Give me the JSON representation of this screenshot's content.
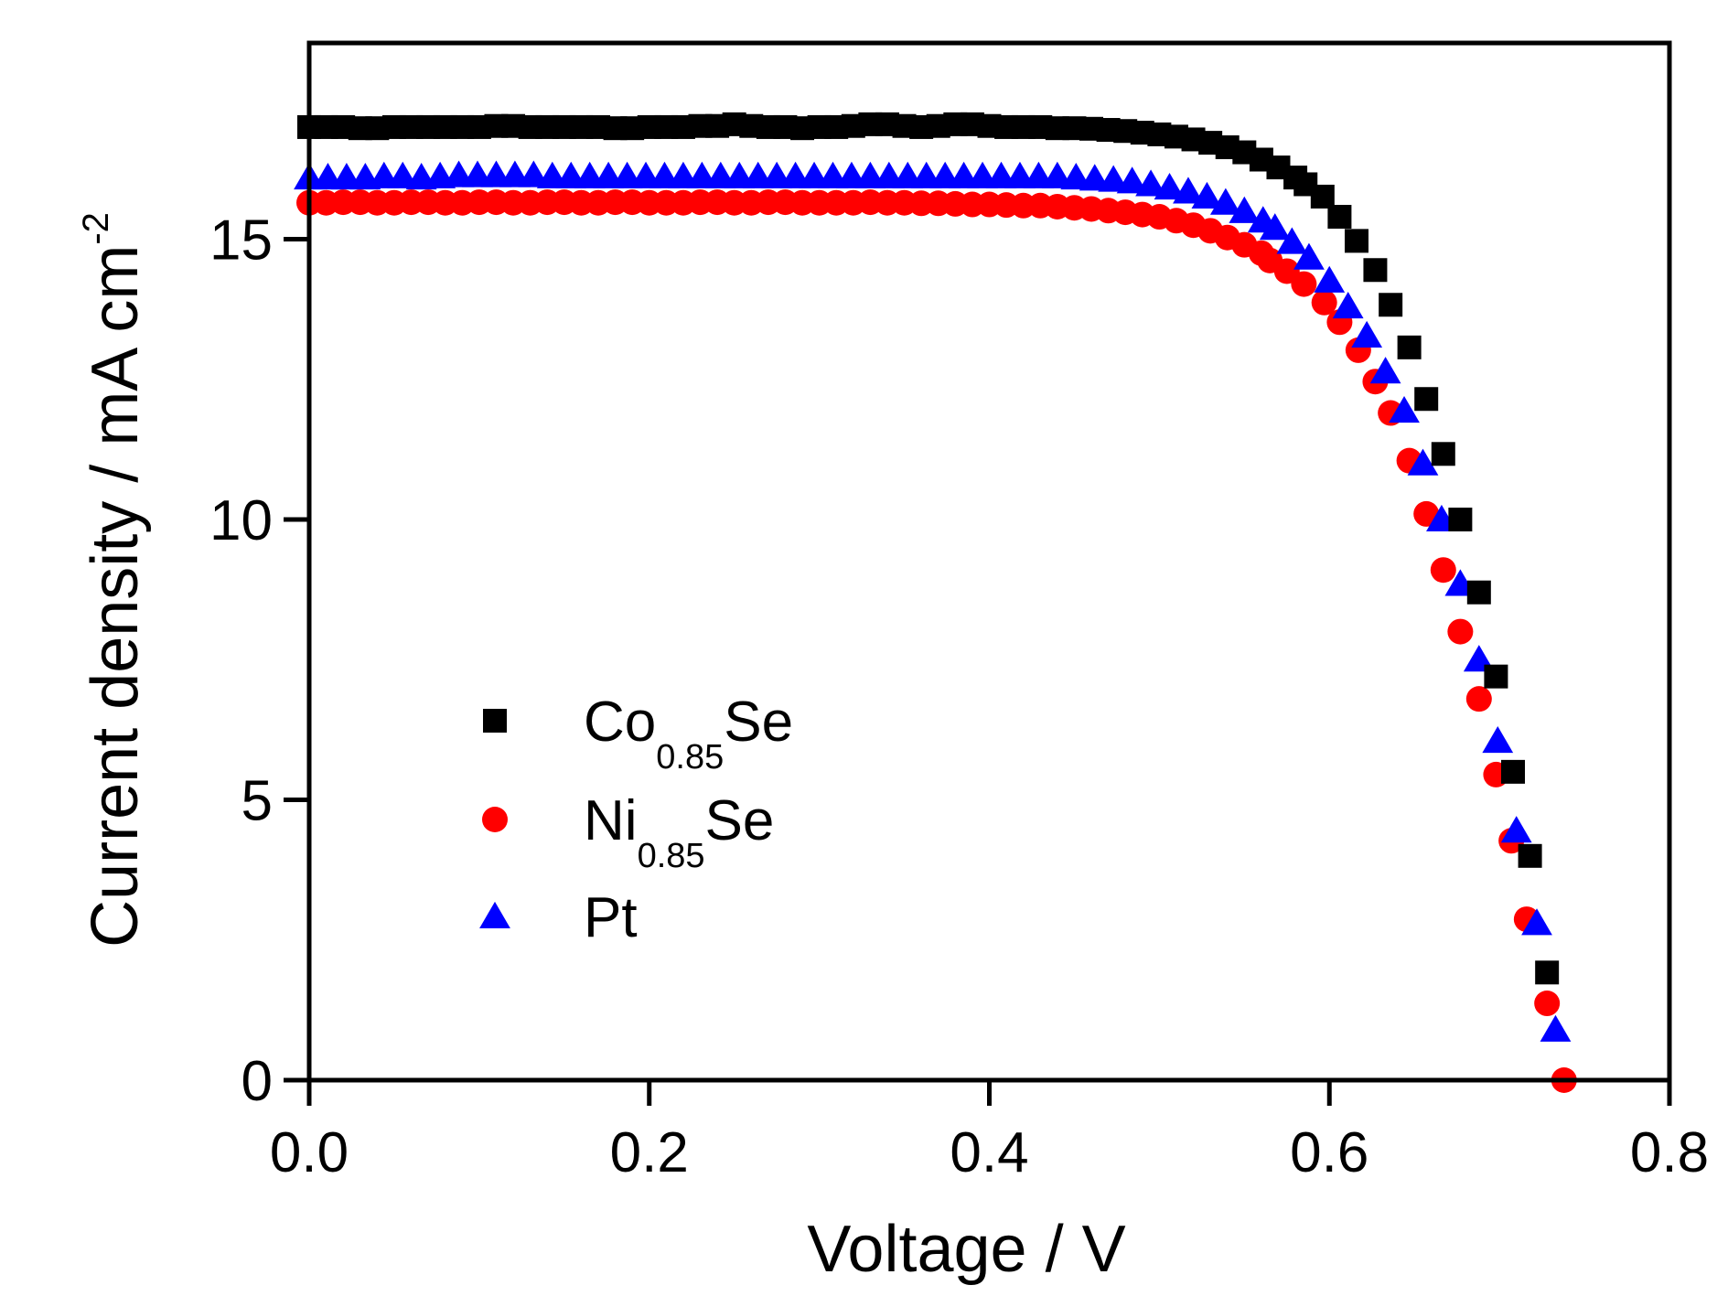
{
  "chart_data": {
    "type": "scatter",
    "title": "",
    "xlabel": "Voltage / V",
    "ylabel": "Current density / mA cm",
    "ylabel_superscript": "-2",
    "xlim": [
      0.0,
      0.8
    ],
    "ylim": [
      0,
      18.5
    ],
    "xticks": [
      0.0,
      0.2,
      0.4,
      0.6,
      0.8
    ],
    "xtick_labels": [
      "0.0",
      "0.2",
      "0.4",
      "0.6",
      "0.8"
    ],
    "yticks": [
      0,
      5,
      10,
      15
    ],
    "ytick_labels": [
      "0",
      "5",
      "10",
      "15"
    ],
    "grid": false,
    "legend_position": "lower-left",
    "series": [
      {
        "name": "Co0.85Se",
        "label_main": "Co",
        "label_sub": "0.85",
        "label_tail": "Se",
        "marker": "square",
        "color": "#000000",
        "x": [
          0.0,
          0.01,
          0.02,
          0.03,
          0.04,
          0.05,
          0.06,
          0.07,
          0.08,
          0.09,
          0.1,
          0.11,
          0.12,
          0.13,
          0.14,
          0.15,
          0.16,
          0.17,
          0.18,
          0.19,
          0.2,
          0.21,
          0.22,
          0.23,
          0.24,
          0.25,
          0.26,
          0.27,
          0.28,
          0.29,
          0.3,
          0.31,
          0.32,
          0.33,
          0.34,
          0.35,
          0.36,
          0.37,
          0.38,
          0.39,
          0.4,
          0.41,
          0.42,
          0.43,
          0.44,
          0.45,
          0.46,
          0.47,
          0.48,
          0.49,
          0.5,
          0.51,
          0.52,
          0.53,
          0.54,
          0.55,
          0.56,
          0.57,
          0.58,
          0.586,
          0.596,
          0.606,
          0.616,
          0.627,
          0.636,
          0.647,
          0.657,
          0.667,
          0.677,
          0.688,
          0.698,
          0.708,
          0.718,
          0.728
        ],
        "y": [
          17.0,
          17.0,
          17.0,
          16.98,
          16.98,
          17.0,
          17.0,
          17.0,
          17.0,
          17.0,
          17.0,
          17.02,
          17.02,
          17.0,
          17.0,
          17.0,
          17.0,
          17.0,
          16.98,
          16.98,
          17.0,
          17.0,
          17.0,
          17.02,
          17.02,
          17.05,
          17.02,
          17.0,
          17.0,
          16.98,
          17.0,
          17.0,
          17.02,
          17.05,
          17.05,
          17.02,
          17.0,
          17.02,
          17.05,
          17.05,
          17.02,
          17.0,
          17.0,
          17.0,
          16.98,
          16.98,
          16.97,
          16.95,
          16.93,
          16.9,
          16.87,
          16.83,
          16.78,
          16.72,
          16.64,
          16.55,
          16.42,
          16.28,
          16.1,
          15.98,
          15.76,
          15.4,
          14.97,
          14.45,
          13.83,
          13.07,
          12.15,
          11.17,
          10.0,
          8.7,
          7.2,
          5.5,
          4.0,
          1.92
        ]
      },
      {
        "name": "Ni0.85Se",
        "label_main": "Ni",
        "label_sub": "0.85",
        "label_tail": "Se",
        "marker": "circle",
        "color": "#ff0000",
        "x": [
          0.0,
          0.01,
          0.02,
          0.03,
          0.04,
          0.05,
          0.06,
          0.07,
          0.08,
          0.09,
          0.1,
          0.11,
          0.12,
          0.13,
          0.14,
          0.15,
          0.16,
          0.17,
          0.18,
          0.19,
          0.2,
          0.21,
          0.22,
          0.23,
          0.24,
          0.25,
          0.26,
          0.27,
          0.28,
          0.29,
          0.3,
          0.31,
          0.32,
          0.33,
          0.34,
          0.35,
          0.36,
          0.37,
          0.38,
          0.39,
          0.4,
          0.41,
          0.42,
          0.43,
          0.44,
          0.45,
          0.46,
          0.47,
          0.48,
          0.49,
          0.5,
          0.51,
          0.52,
          0.53,
          0.54,
          0.55,
          0.56,
          0.565,
          0.575,
          0.585,
          0.597,
          0.606,
          0.617,
          0.627,
          0.636,
          0.647,
          0.657,
          0.667,
          0.677,
          0.688,
          0.698,
          0.707,
          0.716,
          0.728,
          0.738
        ],
        "y": [
          15.65,
          15.65,
          15.66,
          15.66,
          15.65,
          15.65,
          15.66,
          15.66,
          15.65,
          15.65,
          15.66,
          15.66,
          15.65,
          15.65,
          15.66,
          15.66,
          15.65,
          15.65,
          15.66,
          15.66,
          15.65,
          15.65,
          15.65,
          15.66,
          15.66,
          15.65,
          15.65,
          15.66,
          15.66,
          15.65,
          15.65,
          15.65,
          15.65,
          15.66,
          15.65,
          15.65,
          15.64,
          15.64,
          15.63,
          15.62,
          15.62,
          15.61,
          15.6,
          15.6,
          15.58,
          15.56,
          15.54,
          15.51,
          15.48,
          15.44,
          15.4,
          15.33,
          15.25,
          15.15,
          15.03,
          14.9,
          14.75,
          14.62,
          14.43,
          14.2,
          13.87,
          13.52,
          13.02,
          12.46,
          11.9,
          11.05,
          10.1,
          9.1,
          8.0,
          6.8,
          5.45,
          4.27,
          2.87,
          1.37,
          0.0
        ]
      },
      {
        "name": "Pt",
        "label_main": "Pt",
        "label_sub": "",
        "label_tail": "",
        "marker": "triangle",
        "color": "#0000ff",
        "x": [
          0.0,
          0.011,
          0.022,
          0.033,
          0.044,
          0.055,
          0.066,
          0.077,
          0.088,
          0.099,
          0.11,
          0.121,
          0.132,
          0.143,
          0.154,
          0.165,
          0.176,
          0.187,
          0.198,
          0.209,
          0.22,
          0.231,
          0.242,
          0.253,
          0.264,
          0.275,
          0.286,
          0.297,
          0.308,
          0.319,
          0.33,
          0.341,
          0.352,
          0.363,
          0.374,
          0.385,
          0.396,
          0.407,
          0.418,
          0.429,
          0.44,
          0.451,
          0.462,
          0.473,
          0.484,
          0.495,
          0.506,
          0.517,
          0.528,
          0.539,
          0.55,
          0.561,
          0.568,
          0.578,
          0.588,
          0.6,
          0.611,
          0.622,
          0.633,
          0.644,
          0.655,
          0.666,
          0.677,
          0.688,
          0.699,
          0.71,
          0.722,
          0.733
        ],
        "y": [
          16.1,
          16.1,
          16.1,
          16.1,
          16.12,
          16.12,
          16.1,
          16.12,
          16.14,
          16.14,
          16.14,
          16.14,
          16.14,
          16.12,
          16.12,
          16.12,
          16.12,
          16.12,
          16.12,
          16.12,
          16.12,
          16.12,
          16.12,
          16.12,
          16.12,
          16.12,
          16.12,
          16.12,
          16.12,
          16.12,
          16.12,
          16.12,
          16.12,
          16.12,
          16.12,
          16.12,
          16.12,
          16.12,
          16.12,
          16.12,
          16.12,
          16.1,
          16.08,
          16.06,
          16.03,
          15.98,
          15.92,
          15.85,
          15.76,
          15.65,
          15.5,
          15.33,
          15.2,
          14.95,
          14.67,
          14.26,
          13.8,
          13.28,
          12.64,
          11.94,
          11.0,
          10.0,
          8.85,
          7.5,
          6.05,
          4.45,
          2.8,
          0.9
        ]
      }
    ]
  }
}
